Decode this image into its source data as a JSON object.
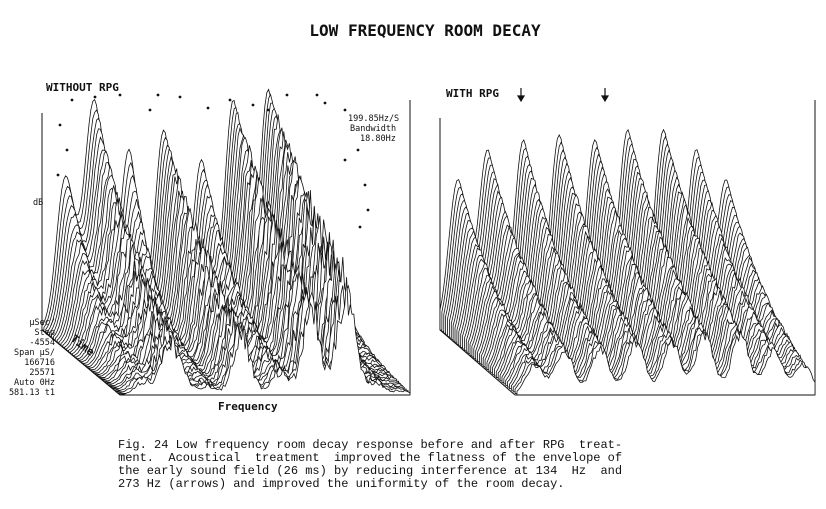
{
  "title": "LOW FREQUENCY ROOM DECAY",
  "left_panel": {
    "label": "WITHOUT RPG",
    "annotations": [
      "199.85Hz/S",
      "Bandwidth",
      "18.80Hz"
    ],
    "y_label": "dB",
    "time_label": "Time",
    "x_label": "Frequency",
    "settings": [
      "μSec/",
      "Step",
      "-4554",
      "Span μS/",
      "166716",
      "25571",
      "Auto 0Hz",
      "581.13  t1"
    ]
  },
  "right_panel": {
    "label": "WITH RPG"
  },
  "caption": {
    "lines": [
      "Fig. 24 Low frequency room decay response before and after RPG  treat-",
      "ment.  Acoustical  treatment  improved the flatness of the envelope of",
      "the early sound field (26 ms) by reducing interference at 134  Hz  and",
      "273 Hz (arrows) and improved the uniformity of the room decay."
    ]
  }
}
